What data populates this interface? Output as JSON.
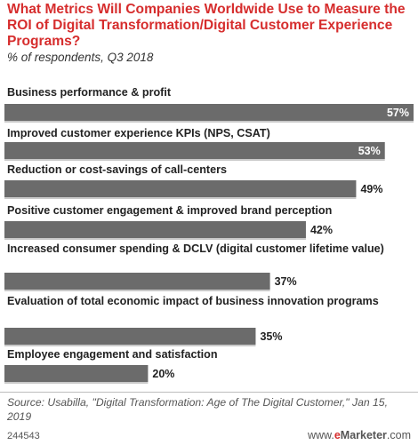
{
  "header": {
    "title": "What Metrics Will Companies Worldwide Use to Measure the ROI of Digital Transformation/Digital Customer Experience Programs?",
    "subtitle": "% of respondents, Q3 2018"
  },
  "colors": {
    "title": "#d62d2d",
    "bar": "#6b6b6b",
    "bar_alt": "#c9c9c9",
    "inside_label": "#ffffff",
    "brand_e": "#d62d2d"
  },
  "chart_data": {
    "type": "bar",
    "orientation": "horizontal",
    "title": "What Metrics Will Companies Worldwide Use to Measure the ROI of Digital Transformation/Digital Customer Experience Programs?",
    "subtitle": "% of respondents, Q3 2018",
    "categories": [
      "Business performance & profit",
      "Improved customer experience KPIs (NPS, CSAT)",
      "Reduction or cost-savings of call-centers",
      "Positive customer engagement & improved brand perception",
      "Increased consumer spending & DCLV (digital customer lifetime value)",
      "Evaluation of total economic impact of business innovation programs",
      "Employee engagement and satisfaction"
    ],
    "values": [
      57,
      53,
      49,
      42,
      37,
      35,
      20
    ],
    "value_labels": [
      "57%",
      "53%",
      "49%",
      "42%",
      "37%",
      "35%",
      "20%"
    ],
    "unit": "%",
    "xlim": [
      0,
      57
    ],
    "grid": false,
    "legend": "none"
  },
  "footer": {
    "source": "Source: Usabilla, \"Digital Transformation: Age of The Digital Customer,\" Jan 15, 2019",
    "chart_id": "244543",
    "brand_prefix": "www.",
    "brand_e": "e",
    "brand_name": "Marketer",
    "brand_suffix": ".com"
  }
}
